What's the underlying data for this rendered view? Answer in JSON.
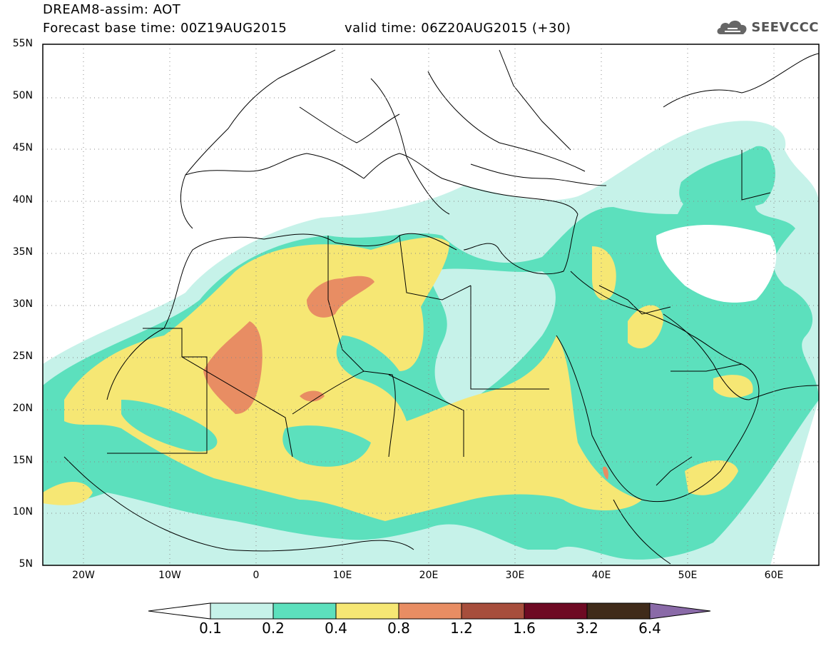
{
  "header": {
    "title_line1": "DREAM8-assim: AOT",
    "title_line2": "Forecast base time: 00Z19AUG2015",
    "valid_time": "valid time: 06Z20AUG2015 (+30)",
    "logo_text": "SEEVCCC",
    "logo_icon": "cloud-icon"
  },
  "map": {
    "lat_labels": [
      "55N",
      "50N",
      "45N",
      "40N",
      "35N",
      "30N",
      "25N",
      "20N",
      "15N",
      "10N",
      "5N"
    ],
    "lon_labels": [
      "20W",
      "10W",
      "0",
      "10E",
      "20E",
      "30E",
      "40E",
      "50E",
      "60E"
    ],
    "extent": {
      "lon_min": -25,
      "lon_max": 65,
      "lat_min": 5,
      "lat_max": 55
    },
    "grid": "dotted"
  },
  "colorbar": {
    "labels": [
      "0.1",
      "0.2",
      "0.4",
      "0.8",
      "1.2",
      "1.6",
      "3.2",
      "6.4"
    ],
    "colors": [
      "#ffffff",
      "#c6f2e9",
      "#5ce0bd",
      "#f6e774",
      "#e88d63",
      "#a74e3c",
      "#6e0a23",
      "#402b1a",
      "#8a6aa8"
    ]
  },
  "levels": {
    "c1": "#c6f2e9",
    "c2": "#5ce0bd",
    "c3": "#f6e774",
    "c4": "#e88d63"
  }
}
